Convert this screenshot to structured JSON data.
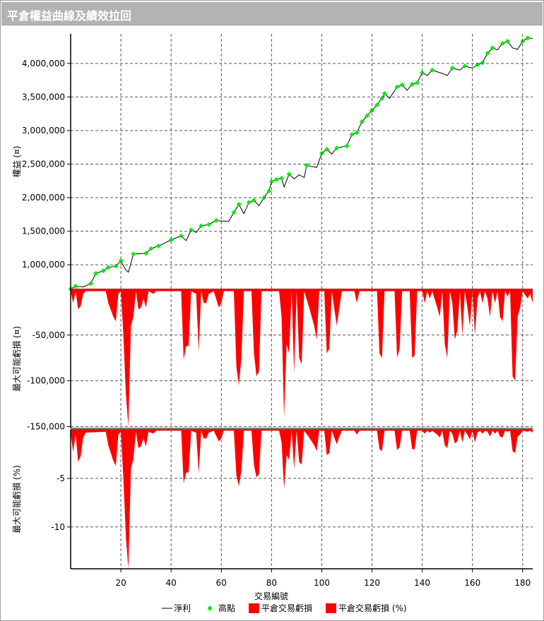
{
  "title": "平倉權益曲線及績效拉回",
  "colors": {
    "equity_line": "#000000",
    "highs": "#00ee00",
    "drawdown": "#ff0000",
    "grid": "#555555"
  },
  "chart_data": [
    {
      "type": "line",
      "ylabel": "權益 (¤)",
      "yticks": [
        1000000,
        1500000,
        2000000,
        2500000,
        3000000,
        3500000,
        4000000
      ],
      "ytick_labels": [
        "1,000,000",
        "1,500,000",
        "2,000,000",
        "2,500,000",
        "3,000,000",
        "3,500,000",
        "4,000,000"
      ],
      "ylim": [
        634000,
        4440000
      ],
      "grid": true,
      "series": [
        {
          "name": "淨利",
          "x": [
            0,
            2,
            5,
            8,
            10,
            13,
            15,
            18,
            20,
            22,
            23,
            25,
            30,
            32,
            35,
            40,
            44,
            46,
            48,
            50,
            52,
            55,
            58,
            60,
            63,
            65,
            67,
            69,
            71,
            73,
            75,
            77,
            79,
            80,
            82,
            84,
            85,
            87,
            89,
            91,
            93,
            94,
            98,
            100,
            102,
            104,
            106,
            110,
            112,
            114,
            116,
            118,
            120,
            122,
            124,
            125,
            127,
            130,
            132,
            134,
            136,
            138,
            140,
            142,
            144,
            148,
            150,
            152,
            155,
            157,
            160,
            162,
            164,
            166,
            168,
            170,
            172,
            174,
            176,
            178,
            180,
            182,
            184
          ],
          "y": [
            640000,
            680000,
            670000,
            720000,
            870000,
            910000,
            960000,
            980000,
            1060000,
            920000,
            890000,
            1160000,
            1170000,
            1240000,
            1280000,
            1370000,
            1430000,
            1360000,
            1520000,
            1480000,
            1580000,
            1600000,
            1660000,
            1650000,
            1650000,
            1780000,
            1900000,
            1760000,
            1930000,
            1960000,
            1880000,
            2000000,
            2100000,
            2240000,
            2270000,
            2290000,
            2160000,
            2350000,
            2280000,
            2340000,
            2300000,
            2480000,
            2450000,
            2660000,
            2720000,
            2650000,
            2740000,
            2770000,
            2940000,
            2970000,
            3130000,
            3220000,
            3300000,
            3380000,
            3480000,
            3550000,
            3480000,
            3650000,
            3680000,
            3600000,
            3690000,
            3710000,
            3860000,
            3820000,
            3900000,
            3850000,
            3820000,
            3930000,
            3900000,
            3960000,
            3930000,
            3980000,
            4010000,
            4150000,
            4230000,
            4200000,
            4300000,
            4330000,
            4230000,
            4210000,
            4330000,
            4380000,
            4370000
          ]
        },
        {
          "name": "高點",
          "type": "scatter",
          "rule": "new equity highs"
        }
      ]
    },
    {
      "type": "area",
      "ylabel": "最大可能虧損 (¤)",
      "yticks": [
        -50000,
        -100000,
        -150000
      ],
      "ytick_labels": [
        "-50,000",
        "-100,000",
        "-150,000"
      ],
      "ylim": [
        -152000,
        0
      ],
      "series_name": "平倉交易虧損",
      "points": [
        [
          0,
          -2000
        ],
        [
          1,
          -15000
        ],
        [
          2,
          -3000
        ],
        [
          3,
          -22000
        ],
        [
          4,
          -18000
        ],
        [
          5,
          -5000
        ],
        [
          6,
          -2000
        ],
        [
          14,
          -2000
        ],
        [
          15,
          -15000
        ],
        [
          17,
          -30000
        ],
        [
          18,
          -35000
        ],
        [
          19,
          -5000
        ],
        [
          20,
          -2000
        ],
        [
          21,
          -50000
        ],
        [
          22,
          -115000
        ],
        [
          23,
          -150000
        ],
        [
          24,
          -40000
        ],
        [
          25,
          -30000
        ],
        [
          26,
          -2000
        ],
        [
          27,
          -22000
        ],
        [
          28,
          -20000
        ],
        [
          29,
          -10000
        ],
        [
          30,
          -20000
        ],
        [
          31,
          -2000
        ],
        [
          33,
          -5000
        ],
        [
          34,
          -2000
        ],
        [
          44,
          -2000
        ],
        [
          45,
          -77000
        ],
        [
          46,
          -62000
        ],
        [
          47,
          -62000
        ],
        [
          48,
          -2000
        ],
        [
          50,
          -5000
        ],
        [
          51,
          -68000
        ],
        [
          52,
          -2000
        ],
        [
          53,
          -15000
        ],
        [
          54,
          -15000
        ],
        [
          55,
          -5000
        ],
        [
          57,
          -2000
        ],
        [
          59,
          -20000
        ],
        [
          60,
          -15000
        ],
        [
          61,
          -2000
        ],
        [
          65,
          -2000
        ],
        [
          66,
          -85000
        ],
        [
          67,
          -105000
        ],
        [
          68,
          -75000
        ],
        [
          69,
          -2000
        ],
        [
          72,
          -2000
        ],
        [
          73,
          -70000
        ],
        [
          74,
          -95000
        ],
        [
          75,
          -90000
        ],
        [
          76,
          -2000
        ],
        [
          83,
          -2000
        ],
        [
          84,
          -30000
        ],
        [
          85,
          -140000
        ],
        [
          86,
          -60000
        ],
        [
          87,
          -70000
        ],
        [
          88,
          -2000
        ],
        [
          89,
          -92000
        ],
        [
          90,
          -2000
        ],
        [
          91,
          -75000
        ],
        [
          92,
          -82000
        ],
        [
          93,
          -2000
        ],
        [
          95,
          -20000
        ],
        [
          97,
          -40000
        ],
        [
          98,
          -55000
        ],
        [
          99,
          -2000
        ],
        [
          101,
          -2000
        ],
        [
          102,
          -70000
        ],
        [
          103,
          -65000
        ],
        [
          104,
          -2000
        ],
        [
          106,
          -40000
        ],
        [
          107,
          -20000
        ],
        [
          108,
          -2000
        ],
        [
          113,
          -2000
        ],
        [
          114,
          -15000
        ],
        [
          115,
          -2000
        ],
        [
          122,
          -2000
        ],
        [
          123,
          -70000
        ],
        [
          124,
          -75000
        ],
        [
          125,
          -2000
        ],
        [
          129,
          -2000
        ],
        [
          130,
          -75000
        ],
        [
          131,
          -65000
        ],
        [
          132,
          -2000
        ],
        [
          135,
          -2000
        ],
        [
          136,
          -75000
        ],
        [
          137,
          -72000
        ],
        [
          138,
          -2000
        ],
        [
          140,
          -2000
        ],
        [
          141,
          -15000
        ],
        [
          142,
          -2000
        ],
        [
          143,
          -10000
        ],
        [
          144,
          -2000
        ],
        [
          146,
          -20000
        ],
        [
          147,
          -30000
        ],
        [
          148,
          -2000
        ],
        [
          149,
          -60000
        ],
        [
          150,
          -75000
        ],
        [
          151,
          -2000
        ],
        [
          152,
          -15000
        ],
        [
          153,
          -55000
        ],
        [
          154,
          -45000
        ],
        [
          155,
          -2000
        ],
        [
          156,
          -50000
        ],
        [
          157,
          -2000
        ],
        [
          158,
          -20000
        ],
        [
          159,
          -40000
        ],
        [
          160,
          -2000
        ],
        [
          161,
          -50000
        ],
        [
          162,
          -10000
        ],
        [
          163,
          -2000
        ],
        [
          164,
          -15000
        ],
        [
          165,
          -2000
        ],
        [
          166,
          -10000
        ],
        [
          167,
          -30000
        ],
        [
          168,
          -2000
        ],
        [
          169,
          -15000
        ],
        [
          170,
          -2000
        ],
        [
          171,
          -30000
        ],
        [
          172,
          -35000
        ],
        [
          173,
          -2000
        ],
        [
          174,
          -8000
        ],
        [
          175,
          -2000
        ],
        [
          176,
          -95000
        ],
        [
          177,
          -100000
        ],
        [
          178,
          -30000
        ],
        [
          179,
          -20000
        ],
        [
          180,
          -2000
        ],
        [
          182,
          -10000
        ],
        [
          183,
          -5000
        ],
        [
          184,
          -15000
        ]
      ]
    },
    {
      "type": "area",
      "ylabel": "最大可能虧損 (%)",
      "yticks": [
        -5,
        -10
      ],
      "ytick_labels": [
        "-5",
        "-10"
      ],
      "ylim": [
        -14.3,
        0
      ],
      "series_name": "平倉交易虧損 (%)",
      "points": [
        [
          0,
          -0.3
        ],
        [
          1,
          -2.3
        ],
        [
          2,
          -0.5
        ],
        [
          3,
          -3.3
        ],
        [
          4,
          -2.7
        ],
        [
          5,
          -0.8
        ],
        [
          6,
          -0.3
        ],
        [
          14,
          -0.2
        ],
        [
          15,
          -1.6
        ],
        [
          17,
          -3.2
        ],
        [
          18,
          -3.7
        ],
        [
          19,
          -0.5
        ],
        [
          20,
          -0.2
        ],
        [
          21,
          -5
        ],
        [
          22,
          -11
        ],
        [
          23,
          -14.3
        ],
        [
          24,
          -4
        ],
        [
          25,
          -3
        ],
        [
          26,
          -0.2
        ],
        [
          27,
          -1.9
        ],
        [
          28,
          -1.7
        ],
        [
          29,
          -0.9
        ],
        [
          30,
          -1.7
        ],
        [
          31,
          -0.2
        ],
        [
          33,
          -0.4
        ],
        [
          34,
          -0.1
        ],
        [
          44,
          -0.1
        ],
        [
          45,
          -5.5
        ],
        [
          46,
          -4.4
        ],
        [
          47,
          -4.4
        ],
        [
          48,
          -0.1
        ],
        [
          50,
          -0.3
        ],
        [
          51,
          -4.5
        ],
        [
          52,
          -0.1
        ],
        [
          53,
          -0.9
        ],
        [
          54,
          -0.9
        ],
        [
          55,
          -0.3
        ],
        [
          57,
          -0.1
        ],
        [
          59,
          -1.2
        ],
        [
          60,
          -0.9
        ],
        [
          61,
          -0.1
        ],
        [
          65,
          -0.1
        ],
        [
          66,
          -4.7
        ],
        [
          67,
          -5.8
        ],
        [
          68,
          -4.2
        ],
        [
          69,
          -0.1
        ],
        [
          72,
          -0.1
        ],
        [
          73,
          -3.6
        ],
        [
          74,
          -4.9
        ],
        [
          75,
          -4.6
        ],
        [
          76,
          -0.1
        ],
        [
          83,
          -0.1
        ],
        [
          84,
          -1.3
        ],
        [
          85,
          -6.1
        ],
        [
          86,
          -2.6
        ],
        [
          87,
          -3.1
        ],
        [
          88,
          -0.1
        ],
        [
          89,
          -4
        ],
        [
          90,
          -0.1
        ],
        [
          91,
          -3.3
        ],
        [
          92,
          -3.6
        ],
        [
          93,
          -0.1
        ],
        [
          95,
          -0.8
        ],
        [
          97,
          -1.6
        ],
        [
          98,
          -2.2
        ],
        [
          99,
          -0.1
        ],
        [
          101,
          -0.1
        ],
        [
          102,
          -2.6
        ],
        [
          103,
          -2.4
        ],
        [
          104,
          -0.1
        ],
        [
          106,
          -1.5
        ],
        [
          107,
          -0.7
        ],
        [
          108,
          -0.1
        ],
        [
          113,
          -0.1
        ],
        [
          114,
          -0.5
        ],
        [
          115,
          -0.1
        ],
        [
          122,
          -0.1
        ],
        [
          123,
          -2
        ],
        [
          124,
          -2.2
        ],
        [
          125,
          -0.1
        ],
        [
          129,
          -0.1
        ],
        [
          130,
          -2.1
        ],
        [
          131,
          -1.8
        ],
        [
          132,
          -0.1
        ],
        [
          135,
          -0.1
        ],
        [
          136,
          -2
        ],
        [
          137,
          -2
        ],
        [
          138,
          -0.1
        ],
        [
          140,
          -0.1
        ],
        [
          141,
          -0.4
        ],
        [
          142,
          -0.1
        ],
        [
          143,
          -0.3
        ],
        [
          144,
          -0.1
        ],
        [
          146,
          -0.5
        ],
        [
          147,
          -0.8
        ],
        [
          148,
          -0.1
        ],
        [
          149,
          -1.6
        ],
        [
          150,
          -1.9
        ],
        [
          151,
          -0.1
        ],
        [
          152,
          -0.4
        ],
        [
          153,
          -1.4
        ],
        [
          154,
          -1.2
        ],
        [
          155,
          -0.1
        ],
        [
          156,
          -1.3
        ],
        [
          157,
          -0.1
        ],
        [
          158,
          -0.5
        ],
        [
          159,
          -1
        ],
        [
          160,
          -0.1
        ],
        [
          161,
          -1.3
        ],
        [
          162,
          -0.3
        ],
        [
          163,
          -0.1
        ],
        [
          164,
          -0.4
        ],
        [
          165,
          -0.1
        ],
        [
          166,
          -0.2
        ],
        [
          167,
          -0.7
        ],
        [
          168,
          -0.1
        ],
        [
          169,
          -0.4
        ],
        [
          170,
          -0.1
        ],
        [
          171,
          -0.7
        ],
        [
          172,
          -0.8
        ],
        [
          173,
          -0.1
        ],
        [
          174,
          -0.2
        ],
        [
          175,
          -0.1
        ],
        [
          176,
          -2.2
        ],
        [
          177,
          -2.4
        ],
        [
          178,
          -0.7
        ],
        [
          179,
          -0.5
        ],
        [
          180,
          -0.1
        ],
        [
          182,
          -0.2
        ],
        [
          183,
          -0.1
        ],
        [
          184,
          -0.3
        ]
      ]
    }
  ],
  "xaxis": {
    "label": "交易編號",
    "xlim": [
      0,
      184
    ],
    "ticks": [
      20,
      40,
      60,
      80,
      100,
      120,
      140,
      160,
      180
    ],
    "tick_labels": [
      "20",
      "40",
      "60",
      "80",
      "100",
      "120",
      "140",
      "160",
      "180"
    ]
  },
  "legend": {
    "placement": "bottom",
    "items": [
      "淨利",
      "高點",
      "平倉交易虧損",
      "平倉交易虧損 (%)"
    ]
  }
}
